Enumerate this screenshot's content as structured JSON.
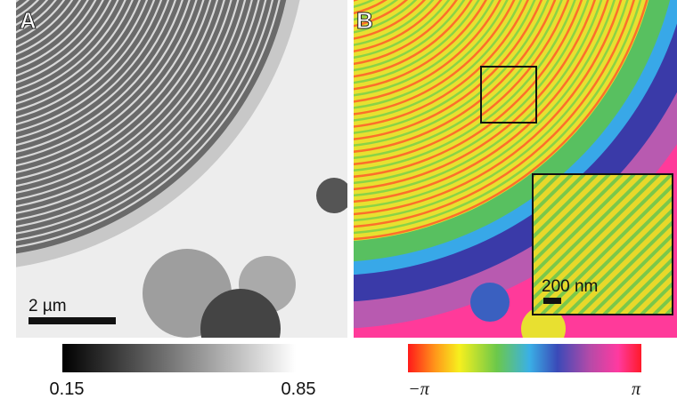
{
  "panels": [
    {
      "label": "A",
      "scale_bar": "2 µm",
      "colorbar": {
        "min_label": "0.15",
        "max_label": "0.85"
      }
    },
    {
      "label": "B",
      "inset_scale_bar": "200 nm",
      "colorbar": {
        "min_label": "−π",
        "max_label": "π"
      }
    }
  ]
}
